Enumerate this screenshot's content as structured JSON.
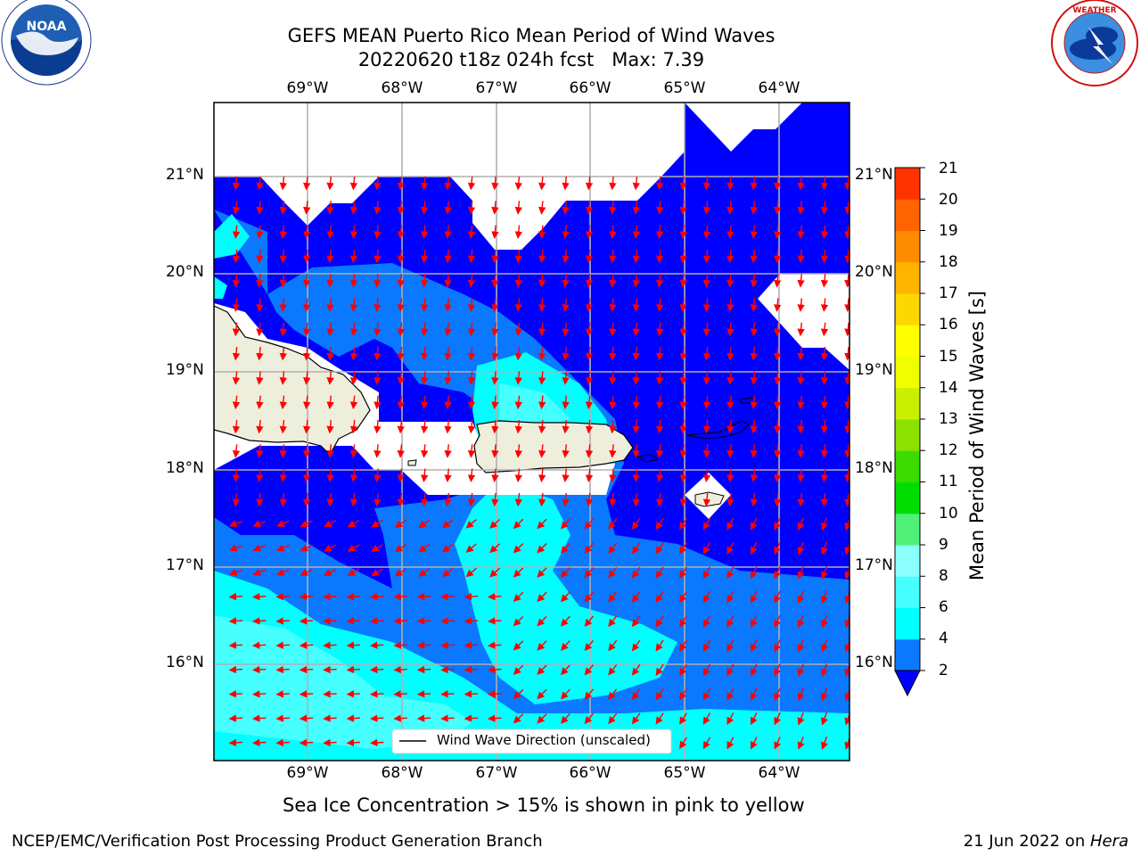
{
  "header": {
    "title_line1": "GEFS MEAN Puerto Rico Mean Period of Wind Waves",
    "title_line2": "20220620 t18z 024h fcst   Max: 7.39"
  },
  "logos": {
    "left_logo_text": "NOAA",
    "left_logo_ring": "NATIONAL OCEANIC AND ATMOSPHERIC ADMINISTRATION · U.S. DEPARTMENT OF COMMERCE",
    "right_logo_ring": "NATIONAL WEATHER SERVICE"
  },
  "map": {
    "lon_labels": [
      "69°W",
      "68°W",
      "67°W",
      "66°W",
      "65°W",
      "64°W"
    ],
    "lat_labels": [
      "21°N",
      "20°N",
      "19°N",
      "18°N",
      "17°N",
      "16°N"
    ],
    "legend_text": "Wind Wave Direction (unscaled)",
    "colors": {
      "level_2_4": "#0000ff",
      "level_4_6": "#0a78ff",
      "level_6_8": "#00ffff",
      "level_8_9": "#46ffff",
      "land": "#eeeedd",
      "no_data": "#ffffff",
      "arrow": "#ff0000"
    }
  },
  "colorbar": {
    "label": "Mean Period of Wind Waves [s]",
    "ticks": [
      "21",
      "20",
      "19",
      "18",
      "17",
      "16",
      "15",
      "14",
      "13",
      "12",
      "11",
      "10",
      "9",
      "8",
      "6",
      "4",
      "2"
    ],
    "colors": [
      "#0000ff",
      "#0a78ff",
      "#00ffff",
      "#46ffff",
      "#8cffff",
      "#50f078",
      "#00dc00",
      "#3cdc00",
      "#8ce100",
      "#c8f000",
      "#f0ff00",
      "#ffff00",
      "#ffd700",
      "#ffb400",
      "#ff8c00",
      "#ff6400",
      "#ff3200",
      "#ff0000"
    ]
  },
  "footer": {
    "sea_ice_note": "Sea Ice Concentration > 15% is shown in pink to yellow",
    "branch": "NCEP/EMC/Verification Post Processing Product Generation Branch",
    "date_prefix": "21 Jun 2022 on ",
    "host": "Hera"
  }
}
